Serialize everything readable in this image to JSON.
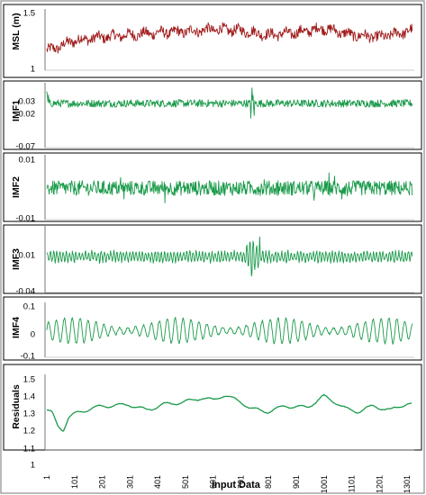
{
  "chart_data": {
    "type": "line",
    "xlabel": "Input Data",
    "x_range": [
      1,
      1320
    ],
    "x_ticks": [
      "1",
      "101",
      "201",
      "301",
      "401",
      "501",
      "601",
      "701",
      "801",
      "901",
      "1001",
      "1101",
      "1201",
      "1301"
    ],
    "panels": [
      {
        "ylabel": "MSL (m)",
        "yticks": [
          "1.5",
          "1"
        ],
        "ylim": [
          1.0,
          1.5
        ],
        "color": "#a01c1c",
        "character": "noisy series with slow rising trend",
        "anchors": [
          [
            1,
            1.16
          ],
          [
            30,
            1.18
          ],
          [
            100,
            1.25
          ],
          [
            200,
            1.28
          ],
          [
            300,
            1.3
          ],
          [
            400,
            1.32
          ],
          [
            500,
            1.33
          ],
          [
            600,
            1.35
          ],
          [
            700,
            1.34
          ],
          [
            800,
            1.3
          ],
          [
            900,
            1.32
          ],
          [
            1000,
            1.36
          ],
          [
            1100,
            1.3
          ],
          [
            1200,
            1.28
          ],
          [
            1300,
            1.33
          ],
          [
            1320,
            1.34
          ]
        ]
      },
      {
        "ylabel": "IMF1",
        "yticks": [
          "0.03",
          "0.02",
          "-0.07"
        ],
        "ylim": [
          -0.08,
          0.06
        ],
        "color": "#1a9a4a",
        "character": "high-frequency oscillation around 0.02, spike near x=740",
        "anchors": [
          [
            1,
            0.02
          ],
          [
            1320,
            0.02
          ]
        ]
      },
      {
        "ylabel": "IMF2",
        "yticks": [
          "0.01",
          "-0.01"
        ],
        "ylim": [
          -0.012,
          0.012
        ],
        "color": "#1a9a4a",
        "character": "high-frequency oscillation around 0",
        "anchors": [
          [
            1,
            0
          ],
          [
            1320,
            0
          ]
        ]
      },
      {
        "ylabel": "IMF3",
        "yticks": [
          "0.01",
          "-0.04"
        ],
        "ylim": [
          -0.05,
          0.04
        ],
        "color": "#1a9a4a",
        "character": "medium-frequency oscillation around 0, burst near x=740",
        "anchors": [
          [
            1,
            0
          ],
          [
            1320,
            0
          ]
        ]
      },
      {
        "ylabel": "IMF4",
        "yticks": [
          "0.1",
          "0",
          "-0.1"
        ],
        "ylim": [
          -0.1,
          0.1
        ],
        "color": "#1a9a4a",
        "character": "low-frequency oscillation around 0",
        "anchors": [
          [
            1,
            0
          ],
          [
            1320,
            0
          ]
        ]
      },
      {
        "ylabel": "Residuals",
        "yticks": [
          "1.5",
          "1.4",
          "1.3",
          "1.2",
          "1.1",
          "1"
        ],
        "ylim": [
          1.0,
          1.5
        ],
        "color": "#1a9a4a",
        "character": "smooth slowly varying trend",
        "anchors": [
          [
            1,
            1.27
          ],
          [
            20,
            1.25
          ],
          [
            40,
            1.16
          ],
          [
            60,
            1.13
          ],
          [
            80,
            1.22
          ],
          [
            120,
            1.26
          ],
          [
            200,
            1.3
          ],
          [
            300,
            1.31
          ],
          [
            360,
            1.27
          ],
          [
            420,
            1.31
          ],
          [
            500,
            1.33
          ],
          [
            560,
            1.36
          ],
          [
            600,
            1.34
          ],
          [
            640,
            1.38
          ],
          [
            700,
            1.33
          ],
          [
            740,
            1.28
          ],
          [
            800,
            1.26
          ],
          [
            860,
            1.3
          ],
          [
            940,
            1.29
          ],
          [
            1000,
            1.37
          ],
          [
            1040,
            1.33
          ],
          [
            1080,
            1.28
          ],
          [
            1120,
            1.26
          ],
          [
            1180,
            1.3
          ],
          [
            1240,
            1.27
          ],
          [
            1300,
            1.32
          ],
          [
            1320,
            1.31
          ]
        ]
      }
    ]
  }
}
